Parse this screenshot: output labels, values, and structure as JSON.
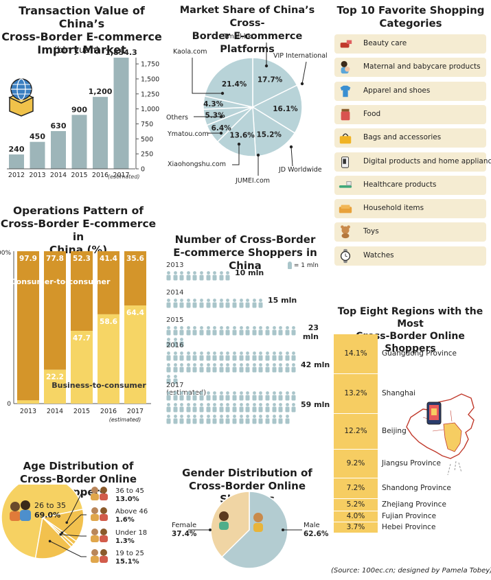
{
  "transaction": {
    "title_lines": [
      "Transaction Value of China’s",
      "Cross-Border E-commerce",
      "Import Market"
    ],
    "unit": "(bln yuan)",
    "estimated_note": "(estimated)"
  },
  "market_share": {
    "title_lines": [
      "Market Share of China’s Cross-",
      "Border E-commerce Platforms"
    ]
  },
  "favorites": {
    "title_lines": [
      "Top 10 Favorite Shopping",
      "Categories"
    ],
    "items": [
      {
        "label": "Beauty care",
        "icon": "lipstick-icon"
      },
      {
        "label": "Maternal and babycare products",
        "icon": "mother-baby-icon"
      },
      {
        "label": "Apparel and shoes",
        "icon": "shirt-icon"
      },
      {
        "label": "Food",
        "icon": "jar-icon"
      },
      {
        "label": "Bags and accessories",
        "icon": "handbag-icon"
      },
      {
        "label": "Digital products and home appliances",
        "icon": "kettle-icon"
      },
      {
        "label": "Healthcare products",
        "icon": "toothbrush-icon"
      },
      {
        "label": "Household items",
        "icon": "sofa-icon"
      },
      {
        "label": "Toys",
        "icon": "teddy-bear-icon"
      },
      {
        "label": "Watches",
        "icon": "watch-icon"
      }
    ]
  },
  "operations": {
    "title_lines": [
      "Operations Pattern of",
      "Cross-Border E-commerce in",
      "China (%)"
    ],
    "c2c_label": "Consumer-to-consumer",
    "b2c_label": "Business-to-consumer",
    "estimated_note": "(estimated)"
  },
  "shoppers": {
    "title_lines": [
      "Number of Cross-Border",
      "E-commerce Shoppers in China"
    ],
    "legend": "= 1 mln",
    "rows": [
      {
        "year": "2013",
        "value": "10 mln",
        "count": 10
      },
      {
        "year": "2014",
        "value": "15 mln",
        "count": 15
      },
      {
        "year": "2015",
        "value": "23 mln",
        "count": 23
      },
      {
        "year": "2016",
        "value": "42 mln",
        "count": 42
      },
      {
        "year": "2017 (estimated)",
        "value": "59 mln",
        "count": 59
      }
    ]
  },
  "regions": {
    "title_lines": [
      "Top Eight Regions with the Most",
      "Cross-Border Online Shoppers"
    ],
    "items": [
      {
        "pct": "14.1%",
        "name": "Guangdong Province"
      },
      {
        "pct": "13.2%",
        "name": "Shanghai"
      },
      {
        "pct": "12.2%",
        "name": "Beijing"
      },
      {
        "pct": "9.2%",
        "name": "Jiangsu Province"
      },
      {
        "pct": "7.2%",
        "name": "Shandong Province"
      },
      {
        "pct": "5.2%",
        "name": "Zhejiang Province"
      },
      {
        "pct": "4.0%",
        "name": "Fujian Province"
      },
      {
        "pct": "3.7%",
        "name": "Hebei Province"
      }
    ]
  },
  "age": {
    "title_lines": [
      "Age Distribution of",
      "Cross-Border Online Shoppers"
    ]
  },
  "gender": {
    "title_lines": [
      "Gender Distribution of",
      "Cross-Border Online Shoppers"
    ]
  },
  "source": "(Source: 100ec.cn; designed by Pamela Tobey)",
  "colors": {
    "bar_gray": "#9db5b9",
    "pie_blue": "#b8d3d8",
    "c2c": "#d4952a",
    "b2c": "#f6d565",
    "region": "#f6cd62",
    "age_main": "#f6d162",
    "female": "#f0d5a4",
    "male": "#b3ccd1",
    "person_icon": "#a9c5ca"
  },
  "chart_data": [
    {
      "type": "bar",
      "categories": [
        "2012",
        "2013",
        "2014",
        "2015",
        "2016",
        "2017"
      ],
      "values": [
        240,
        450,
        630,
        900,
        1200,
        1854.3
      ],
      "value_labels": [
        "240",
        "450",
        "630",
        "900",
        "1,200",
        "1,854.3"
      ],
      "yticks": [
        "0",
        "250",
        "500",
        "750",
        "1,000",
        "1,250",
        "1,500",
        "1,750"
      ],
      "ylim": [
        0,
        1900
      ]
    },
    {
      "type": "pie",
      "labels": [
        "Tmall.hk",
        "VIP International",
        "JD Worldwide",
        "JUMEI.com",
        "Xiaohongshu.com",
        "Ymatou.com",
        "Others",
        "Kaola.com"
      ],
      "values": [
        17.7,
        16.1,
        15.2,
        13.6,
        6.4,
        5.3,
        4.3,
        21.4
      ],
      "value_labels": [
        "17.7%",
        "16.1%",
        "15.2%",
        "13.6%",
        "6.4%",
        "5.3%",
        "4.3%",
        "21.4%"
      ]
    },
    {
      "type": "bar",
      "stacked": true,
      "categories": [
        "2013",
        "2014",
        "2015",
        "2016",
        "2017"
      ],
      "yticks": [
        "0",
        "100%"
      ],
      "series": [
        {
          "name": "Consumer-to-consumer",
          "values": [
            97.9,
            77.8,
            52.3,
            41.4,
            35.6
          ]
        },
        {
          "name": "Business-to-consumer",
          "values": [
            2.1,
            22.2,
            47.7,
            58.6,
            64.4
          ]
        }
      ]
    },
    {
      "type": "pie",
      "labels": [
        "26 to 35",
        "36 to 45",
        "Above 46",
        "Under 18",
        "19 to 25"
      ],
      "values": [
        69.0,
        13.0,
        1.6,
        1.3,
        15.1
      ],
      "value_labels": [
        "69.0%",
        "13.0%",
        "1.6%",
        "1.3%",
        "15.1%"
      ]
    },
    {
      "type": "pie",
      "labels": [
        "Male",
        "Female"
      ],
      "values": [
        62.6,
        37.4
      ],
      "value_labels": [
        "62.6%",
        "37.4%"
      ]
    }
  ]
}
